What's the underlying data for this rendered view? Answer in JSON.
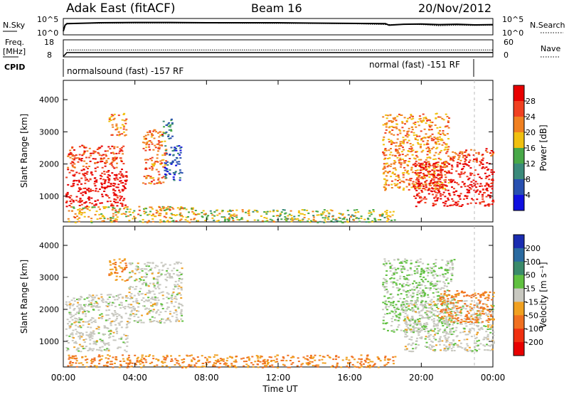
{
  "header": {
    "station": "Adak East (fitACF)",
    "beam": "Beam 16",
    "date": "20/Nov/2012"
  },
  "noise_panel": {
    "left_label": "N.Sky",
    "right_label": "N.Search",
    "left_ticks": [
      "10^5",
      "10^0"
    ],
    "right_ticks": [
      "10^5",
      "10^0"
    ]
  },
  "freq_panel": {
    "left_label_1": "Freq.",
    "left_label_2": "[MHz]",
    "left_ticks": [
      "18",
      "8"
    ],
    "right_label": "Nave",
    "right_ticks": [
      "60",
      "0"
    ]
  },
  "cpid_panel": {
    "label": "CPID",
    "segments": [
      "normalsound (fast) -157 RF",
      "normal (fast) -151 RF"
    ]
  },
  "x_axis": {
    "ticks": [
      "00:00",
      "04:00",
      "08:00",
      "12:00",
      "16:00",
      "20:00",
      "00:00"
    ],
    "label": "Time UT"
  },
  "y_axis": {
    "label": "Slant Range [km]",
    "ticks": [
      "1000",
      "2000",
      "3000",
      "4000"
    ]
  },
  "colorbars": {
    "power": {
      "label": "Power [dB]",
      "ticks": [
        "4",
        "8",
        "12",
        "16",
        "20",
        "24",
        "28"
      ],
      "colors": [
        "#1010e0",
        "#2850b0",
        "#3a8a7a",
        "#48a848",
        "#f0c010",
        "#f08020",
        "#f04020",
        "#e80000"
      ]
    },
    "velocity": {
      "label": "Velocity [m s⁻¹]",
      "ticks": [
        "200",
        "100",
        "50",
        "15",
        "-15",
        "-50",
        "-100",
        "-200"
      ],
      "colors": [
        "#1a2cb0",
        "#2a6aa0",
        "#3a8a6a",
        "#60c040",
        "#c8c8c0",
        "#f0a020",
        "#f07020",
        "#f03010",
        "#e80000"
      ]
    }
  },
  "chart_data": [
    {
      "type": "line",
      "title": "N.Sky / N.Search",
      "xlim": [
        0,
        24
      ],
      "ylim_log10": [
        0,
        5
      ],
      "series": [
        {
          "name": "N.Sky",
          "x": [
            0,
            0.1,
            0.2,
            2,
            4,
            6,
            8,
            10,
            12,
            14,
            16,
            18,
            18.2,
            19,
            20,
            21,
            22,
            23,
            24
          ],
          "y": [
            1,
            3,
            3.5,
            3.8,
            3.9,
            3.9,
            3.8,
            3.8,
            3.8,
            3.7,
            3.6,
            3.5,
            3.0,
            3.3,
            3.4,
            3.2,
            3.3,
            3.1,
            3.2
          ]
        },
        {
          "name": "N.Search",
          "x": [
            0.2,
            4,
            8,
            12,
            16,
            18,
            19,
            20,
            21,
            22,
            23,
            24
          ],
          "y": [
            3.6,
            3.7,
            3.7,
            3.6,
            3.5,
            3.2,
            3.3,
            3.2,
            2.8,
            3.0,
            2.9,
            3.0
          ]
        }
      ]
    },
    {
      "type": "line",
      "title": "Freq. / Nave",
      "xlim": [
        0,
        24
      ],
      "ylim": [
        8,
        18
      ],
      "series": [
        {
          "name": "Freq.",
          "x": [
            0,
            0.1,
            0.2,
            24
          ],
          "y": [
            8,
            9,
            10.3,
            10.3
          ]
        },
        {
          "name": "Nave",
          "x": [
            0.2,
            4,
            8,
            12,
            16,
            20,
            24
          ],
          "y": [
            12,
            12,
            12,
            12,
            12,
            12,
            12
          ]
        }
      ]
    },
    {
      "type": "heatmap",
      "title": "Power [dB]",
      "xlabel": "Time UT",
      "ylabel": "Slant Range [km]",
      "xlim": [
        0,
        24
      ],
      "ylim": [
        200,
        4600
      ],
      "zlim": [
        0,
        30
      ],
      "regions": [
        {
          "x": [
            0.1,
            3.5
          ],
          "y": [
            700,
            1900
          ],
          "value": 28
        },
        {
          "x": [
            0.2,
            3.4
          ],
          "y": [
            1900,
            2600
          ],
          "value": 24
        },
        {
          "x": [
            2.5,
            3.5
          ],
          "y": [
            2900,
            3600
          ],
          "value": 20
        },
        {
          "x": [
            4.4,
            5.7
          ],
          "y": [
            1400,
            3100
          ],
          "value": 22
        },
        {
          "x": [
            5.6,
            6.6
          ],
          "y": [
            1500,
            2600
          ],
          "value": 6
        },
        {
          "x": [
            5.5,
            6.1
          ],
          "y": [
            2800,
            3500
          ],
          "value": 10
        },
        {
          "x": [
            0.2,
            7.5
          ],
          "y": [
            200,
            700
          ],
          "value": 18
        },
        {
          "x": [
            7.5,
            18.5
          ],
          "y": [
            200,
            600
          ],
          "value": 15
        },
        {
          "x": [
            17.8,
            21.5
          ],
          "y": [
            1200,
            3600
          ],
          "value": 20
        },
        {
          "x": [
            19.5,
            24
          ],
          "y": [
            700,
            2100
          ],
          "value": 28
        },
        {
          "x": [
            21.5,
            24
          ],
          "y": [
            2100,
            2500
          ],
          "value": 24
        }
      ]
    },
    {
      "type": "heatmap",
      "title": "Velocity [m s⁻¹]",
      "xlabel": "Time UT",
      "ylabel": "Slant Range [km]",
      "xlim": [
        0,
        24
      ],
      "ylim": [
        200,
        4600
      ],
      "zlim": [
        -200,
        200
      ],
      "regions": [
        {
          "x": [
            0.1,
            3.6
          ],
          "y": [
            700,
            2500
          ],
          "value": 0
        },
        {
          "x": [
            3.6,
            6.6
          ],
          "y": [
            1600,
            3500
          ],
          "value": 0
        },
        {
          "x": [
            2.5,
            3.6
          ],
          "y": [
            2900,
            3600
          ],
          "value": -60
        },
        {
          "x": [
            0.2,
            18.5
          ],
          "y": [
            200,
            600
          ],
          "value": -70
        },
        {
          "x": [
            17.8,
            21.8
          ],
          "y": [
            1300,
            3600
          ],
          "value": 25
        },
        {
          "x": [
            19,
            24
          ],
          "y": [
            700,
            2300
          ],
          "value": 0
        },
        {
          "x": [
            21,
            24
          ],
          "y": [
            1600,
            2600
          ],
          "value": -80
        }
      ]
    }
  ]
}
